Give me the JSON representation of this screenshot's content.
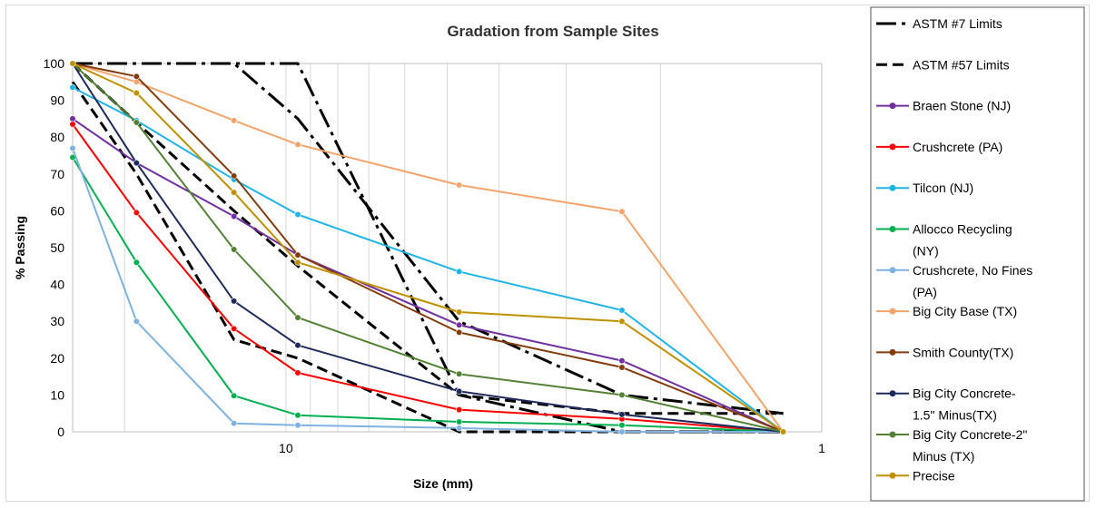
{
  "chart_data": {
    "type": "line",
    "title": "Gradation from Sample Sites",
    "xlabel": "Size (mm)",
    "ylabel": "% Passing",
    "xscale": "log",
    "x_direction": "reversed",
    "xlim": [
      25,
      1
    ],
    "ylim": [
      0,
      100
    ],
    "yticks": [
      0,
      10,
      20,
      30,
      40,
      50,
      60,
      70,
      80,
      90,
      100
    ],
    "xtick_labels": [
      {
        "value": 10,
        "label": "10"
      },
      {
        "value": 1,
        "label": "1"
      }
    ],
    "grid": "vertical log minor gridlines",
    "legend_position": "right",
    "series": [
      {
        "name": "ASTM #7 Limits",
        "color": "#000000",
        "dash": "dashdot",
        "x": [
          25,
          12.5,
          9.5,
          4.75,
          2.36,
          1.18
        ],
        "y": [
          100,
          100,
          100,
          10,
          0,
          0
        ]
      },
      {
        "name": "ASTM #7 Limits",
        "color": "#000000",
        "dash": "dashdot",
        "x": [
          25,
          12.5,
          9.5,
          4.75,
          2.36,
          1.18
        ],
        "y": [
          100,
          100,
          85,
          30,
          10,
          5
        ]
      },
      {
        "name": "ASTM #57 Limits",
        "color": "#000000",
        "dash": "dash",
        "x": [
          25,
          19,
          12.5,
          9.5,
          4.75,
          2.36,
          1.18
        ],
        "y": [
          95,
          70,
          25,
          20,
          0,
          0,
          0
        ]
      },
      {
        "name": "ASTM #57 Limits",
        "color": "#000000",
        "dash": "dash",
        "x": [
          25,
          19,
          12.5,
          9.5,
          4.75,
          2.36,
          1.18
        ],
        "y": [
          100,
          84,
          60,
          45,
          10,
          5,
          5
        ]
      },
      {
        "name": "Braen Stone (NJ)",
        "color": "#7030a0",
        "x": [
          25,
          19,
          12.5,
          9.5,
          4.75,
          2.36,
          1.18
        ],
        "y": [
          85,
          73,
          58.5,
          48,
          29,
          19.3,
          0
        ]
      },
      {
        "name": "Crushcrete (PA)",
        "color": "#ff0000",
        "x": [
          25,
          19,
          12.5,
          9.5,
          4.75,
          2.36,
          1.18
        ],
        "y": [
          83.5,
          59.5,
          28,
          16,
          6,
          3.5,
          0
        ]
      },
      {
        "name": "Tilcon (NJ)",
        "color": "#1fb4e8",
        "x": [
          25,
          19,
          12.5,
          9.5,
          4.75,
          2.36,
          1.18
        ],
        "y": [
          93.5,
          84.5,
          68.5,
          59,
          43.5,
          33,
          0
        ]
      },
      {
        "name": "Allocco Recycling (NY)",
        "color": "#00b050",
        "x": [
          25,
          19,
          12.5,
          9.5,
          4.75,
          2.36,
          1.18
        ],
        "y": [
          74.5,
          46,
          9.8,
          4.5,
          2.7,
          1.8,
          0
        ]
      },
      {
        "name": "Crushcrete, No Fines (PA)",
        "color": "#7fb2e0",
        "x": [
          25,
          19,
          12.5,
          9.5,
          4.75,
          2.36,
          1.18
        ],
        "y": [
          77,
          30,
          2.3,
          1.8,
          1,
          0,
          0
        ]
      },
      {
        "name": "Big City Base (TX)",
        "color": "#f4a46a",
        "x": [
          25,
          19,
          12.5,
          9.5,
          4.75,
          2.36,
          1.18
        ],
        "y": [
          100,
          95,
          84.5,
          78,
          67,
          59.8,
          0
        ]
      },
      {
        "name": "Smith County(TX)",
        "color": "#843c0c",
        "x": [
          25,
          19,
          12.5,
          9.5,
          4.75,
          2.36,
          1.18
        ],
        "y": [
          100,
          96.5,
          69.5,
          48,
          27,
          17.5,
          0
        ]
      },
      {
        "name": "Big City Concrete-1.5\" Minus(TX)",
        "color": "#1f2a5c",
        "x": [
          25,
          19,
          12.5,
          9.5,
          4.75,
          2.36,
          1.18
        ],
        "y": [
          100,
          73,
          35.5,
          23.5,
          11,
          4.7,
          0
        ]
      },
      {
        "name": "Big City Concrete-2\" Minus (TX)",
        "color": "#548235",
        "x": [
          25,
          19,
          12.5,
          9.5,
          4.75,
          2.36,
          1.18
        ],
        "y": [
          100,
          84,
          49.5,
          31,
          15.7,
          10,
          0
        ]
      },
      {
        "name": "Precise",
        "color": "#bf9000",
        "x": [
          25,
          19,
          12.5,
          9.5,
          4.75,
          2.36,
          1.18
        ],
        "y": [
          100,
          92,
          65,
          46,
          32.5,
          30,
          0
        ]
      }
    ],
    "legend": [
      {
        "lines": [
          "ASTM #7 Limits"
        ],
        "color": "#000000",
        "dash": "dashdot",
        "marker": false
      },
      {
        "lines": [
          "ASTM #57 Limits"
        ],
        "color": "#000000",
        "dash": "dash",
        "marker": false
      },
      {
        "lines": [
          "Braen Stone (NJ)"
        ],
        "color": "#7030a0",
        "marker": true
      },
      {
        "lines": [
          "Crushcrete (PA)"
        ],
        "color": "#ff0000",
        "marker": true
      },
      {
        "lines": [
          "Tilcon (NJ)"
        ],
        "color": "#1fb4e8",
        "marker": true
      },
      {
        "lines": [
          "Allocco Recycling",
          "(NY)"
        ],
        "color": "#00b050",
        "marker": true
      },
      {
        "lines": [
          "Crushcrete, No Fines",
          "(PA)"
        ],
        "color": "#7fb2e0",
        "marker": true
      },
      {
        "lines": [
          "Big City Base (TX)"
        ],
        "color": "#f4a46a",
        "marker": true
      },
      {
        "lines": [
          "Smith County(TX)"
        ],
        "color": "#843c0c",
        "marker": true
      },
      {
        "lines": [
          "Big City Concrete-",
          "1.5\" Minus(TX)"
        ],
        "color": "#1f2a5c",
        "marker": true
      },
      {
        "lines": [
          "Big City Concrete-2\"",
          "Minus (TX)"
        ],
        "color": "#548235",
        "marker": true
      },
      {
        "lines": [
          "Precise"
        ],
        "color": "#bf9000",
        "marker": true
      }
    ]
  }
}
